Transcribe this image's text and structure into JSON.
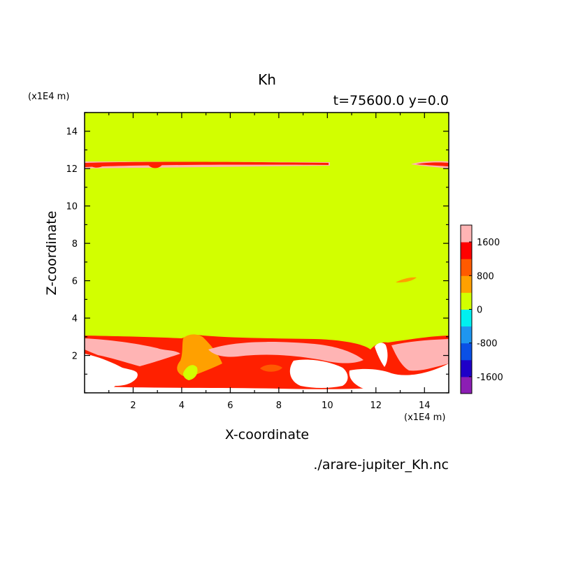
{
  "chart_data": {
    "type": "heatmap",
    "title": "Kh",
    "subtitle": "t=75600.0 y=0.0",
    "xlabel": "X-coordinate",
    "ylabel": "Z-coordinate",
    "x_unit": "(x1E4 m)",
    "y_unit": "(x1E4 m)",
    "filename": "./arare-jupiter_Kh.nc",
    "xlim": [
      0,
      15
    ],
    "ylim": [
      0,
      15
    ],
    "xticks": [
      2,
      4,
      6,
      8,
      10,
      12,
      14
    ],
    "yticks": [
      2,
      4,
      6,
      8,
      10,
      12,
      14
    ],
    "colorbar": {
      "levels": [
        -2000,
        -1600,
        -1200,
        -800,
        -400,
        0,
        400,
        800,
        1200,
        1600,
        2000
      ],
      "tick_labels": [
        "1600",
        "800",
        "0",
        "-800",
        "-1600"
      ],
      "colors": [
        "#8c1eb4",
        "#1e00c8",
        "#0a50e6",
        "#1e96f0",
        "#00f0f0",
        "#d2ff00",
        "#ffa000",
        "#ff5a00",
        "#ff0000",
        "#ffb4b4"
      ]
    },
    "dominant_value_range": [
      0,
      400
    ],
    "features": [
      {
        "region": "thin band",
        "z": 12.2,
        "x_range": [
          0,
          10.0
        ],
        "value_range": [
          1200,
          2000
        ]
      },
      {
        "region": "thin band",
        "z": 12.2,
        "x_range": [
          13.8,
          15
        ],
        "value_range": [
          1200,
          2000
        ]
      },
      {
        "region": "small patch",
        "x": 13.0,
        "z": 6.0,
        "value_range": [
          400,
          800
        ]
      },
      {
        "region": "lower turbulent layer",
        "x_range": [
          0,
          15
        ],
        "z_range": [
          0.2,
          3.2
        ],
        "value_range": [
          400,
          2000
        ]
      },
      {
        "region": "lowest layer (blank)",
        "x_range": [
          0,
          15
        ],
        "z_range": [
          0,
          1.0
        ],
        "value_range": [
          2000,
          null
        ]
      }
    ]
  }
}
